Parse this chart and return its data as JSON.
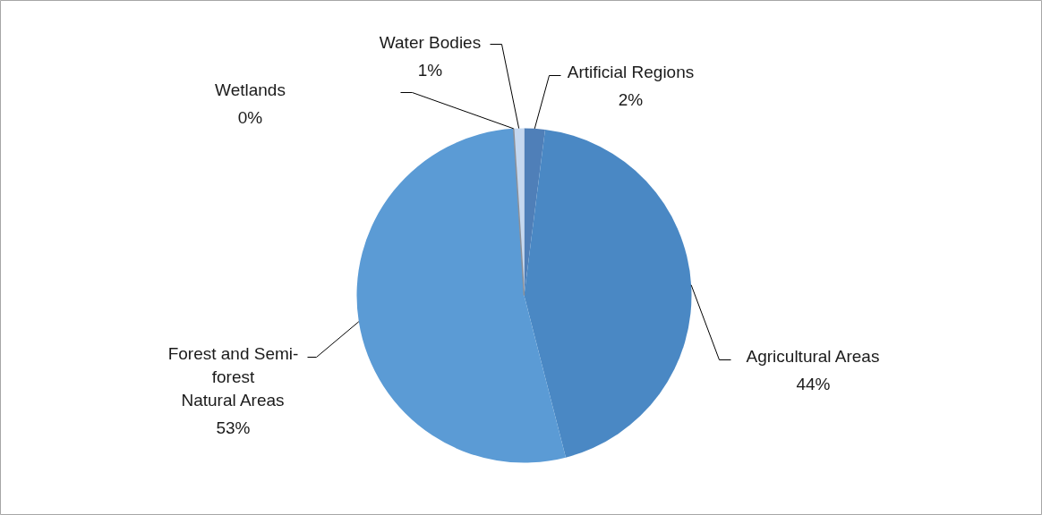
{
  "chart_data": {
    "type": "pie",
    "categories": [
      "Artificial Regions",
      "Agricultural Areas",
      "Forest and Semi-forest\nNatural Areas",
      "Wetlands",
      "Water Bodies"
    ],
    "values": [
      2,
      44,
      53,
      0,
      1
    ],
    "value_labels": [
      "2%",
      "44%",
      "53%",
      "0%",
      "1%"
    ],
    "colors": [
      "#4f7fb8",
      "#4a88c4",
      "#5b9bd5",
      "#8c9099",
      "#c5d8f0"
    ]
  }
}
